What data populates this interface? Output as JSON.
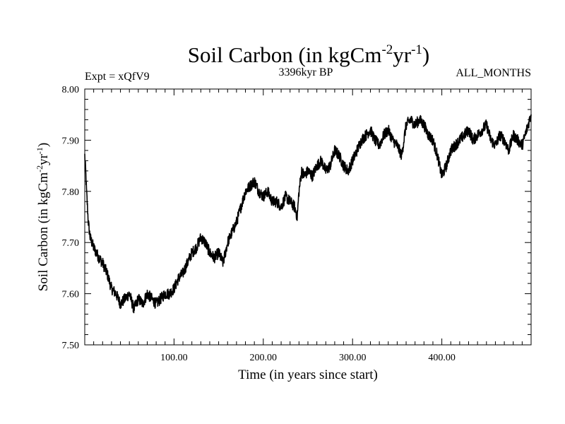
{
  "chart_data": {
    "type": "line",
    "title_main": "Soil Carbon (in kgCm",
    "title_exp1": "-2",
    "title_mid": "yr",
    "title_exp2": "-1",
    "title_end": ")",
    "experiment": "Expt = xQfV9",
    "period": "3396kyr BP",
    "months": "ALL_MONTHS",
    "xlabel": "Time (in years since start)",
    "ylabel_main": "Soil Carbon (in kgCm",
    "ylabel_exp1": "-2",
    "ylabel_mid": "yr",
    "ylabel_exp2": "-1",
    "ylabel_end": ")",
    "xlim": [
      0,
      500
    ],
    "ylim": [
      7.5,
      8.0
    ],
    "x_ticks": [
      {
        "value": 100,
        "label": "100.00"
      },
      {
        "value": 200,
        "label": "200.00"
      },
      {
        "value": 300,
        "label": "300.00"
      },
      {
        "value": 400,
        "label": "400.00"
      }
    ],
    "y_ticks": [
      {
        "value": 7.5,
        "label": "7.50"
      },
      {
        "value": 7.6,
        "label": "7.60"
      },
      {
        "value": 7.7,
        "label": "7.70"
      },
      {
        "value": 7.8,
        "label": "7.80"
      },
      {
        "value": 7.9,
        "label": "7.90"
      },
      {
        "value": 8.0,
        "label": "8.00"
      }
    ],
    "series": [
      {
        "name": "Soil Carbon",
        "color": "#000000",
        "x": [
          0,
          1,
          2,
          3,
          4,
          6,
          8,
          10,
          13,
          16,
          20,
          25,
          30,
          35,
          40,
          45,
          50,
          55,
          60,
          65,
          70,
          75,
          80,
          85,
          90,
          95,
          100,
          105,
          110,
          115,
          120,
          125,
          130,
          135,
          140,
          145,
          150,
          155,
          160,
          165,
          170,
          175,
          180,
          185,
          190,
          195,
          200,
          205,
          210,
          215,
          220,
          225,
          230,
          235,
          238,
          240,
          243,
          246,
          250,
          255,
          260,
          265,
          270,
          275,
          280,
          285,
          290,
          295,
          300,
          305,
          310,
          315,
          320,
          325,
          330,
          335,
          340,
          345,
          350,
          355,
          360,
          365,
          370,
          375,
          380,
          385,
          390,
          395,
          400,
          405,
          410,
          415,
          420,
          425,
          430,
          435,
          440,
          445,
          450,
          455,
          460,
          465,
          470,
          475,
          480,
          485,
          490,
          495,
          500
        ],
        "values": [
          7.87,
          7.84,
          7.8,
          7.77,
          7.74,
          7.71,
          7.7,
          7.69,
          7.68,
          7.67,
          7.66,
          7.64,
          7.61,
          7.6,
          7.58,
          7.59,
          7.6,
          7.57,
          7.59,
          7.58,
          7.6,
          7.59,
          7.58,
          7.59,
          7.6,
          7.6,
          7.61,
          7.63,
          7.64,
          7.66,
          7.68,
          7.69,
          7.71,
          7.7,
          7.68,
          7.67,
          7.68,
          7.66,
          7.7,
          7.72,
          7.74,
          7.77,
          7.8,
          7.81,
          7.82,
          7.8,
          7.79,
          7.8,
          7.78,
          7.78,
          7.77,
          7.79,
          7.78,
          7.77,
          7.75,
          7.8,
          7.84,
          7.83,
          7.84,
          7.83,
          7.85,
          7.86,
          7.84,
          7.85,
          7.88,
          7.87,
          7.85,
          7.84,
          7.86,
          7.88,
          7.9,
          7.91,
          7.92,
          7.9,
          7.89,
          7.91,
          7.92,
          7.9,
          7.89,
          7.87,
          7.93,
          7.94,
          7.93,
          7.94,
          7.93,
          7.91,
          7.9,
          7.87,
          7.83,
          7.85,
          7.88,
          7.89,
          7.9,
          7.91,
          7.92,
          7.9,
          7.91,
          7.92,
          7.93,
          7.9,
          7.89,
          7.91,
          7.9,
          7.88,
          7.91,
          7.9,
          7.89,
          7.92,
          7.95
        ]
      }
    ]
  }
}
